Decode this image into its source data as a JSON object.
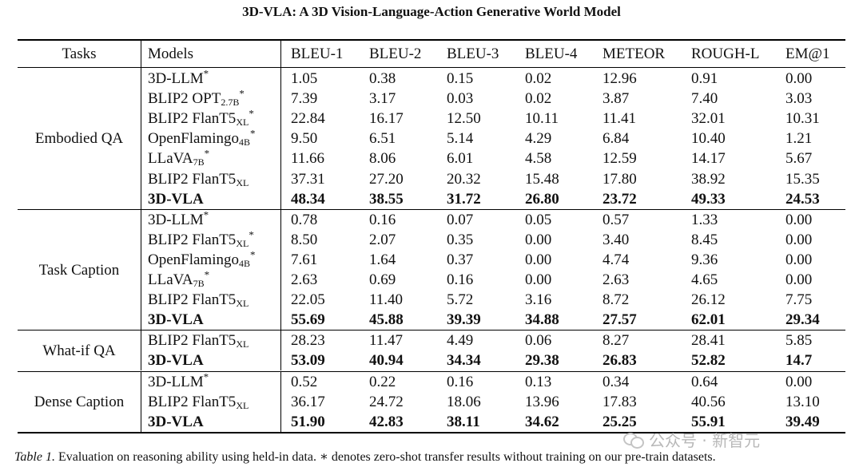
{
  "title": "3D-VLA: A 3D Vision-Language-Action Generative World Model",
  "columns": [
    "Tasks",
    "Models",
    "BLEU-1",
    "BLEU-2",
    "BLEU-3",
    "BLEU-4",
    "METEOR",
    "ROUGH-L",
    "EM@1"
  ],
  "groups": [
    {
      "task": "Embodied QA",
      "rows": [
        {
          "model": "3D-LLM",
          "sub": "",
          "star": true,
          "bold": false,
          "values": [
            "1.05",
            "0.38",
            "0.15",
            "0.02",
            "12.96",
            "0.91",
            "0.00"
          ]
        },
        {
          "model": "BLIP2 OPT",
          "sub": "2.7B",
          "star": true,
          "bold": false,
          "values": [
            "7.39",
            "3.17",
            "0.03",
            "0.02",
            "3.87",
            "7.40",
            "3.03"
          ]
        },
        {
          "model": "BLIP2 FlanT5",
          "sub": "XL",
          "star": true,
          "bold": false,
          "values": [
            "22.84",
            "16.17",
            "12.50",
            "10.11",
            "11.41",
            "32.01",
            "10.31"
          ]
        },
        {
          "model": "OpenFlamingo",
          "sub": "4B",
          "star": true,
          "bold": false,
          "values": [
            "9.50",
            "6.51",
            "5.14",
            "4.29",
            "6.84",
            "10.40",
            "1.21"
          ]
        },
        {
          "model": "LLaVA",
          "sub": "7B",
          "star": true,
          "bold": false,
          "values": [
            "11.66",
            "8.06",
            "6.01",
            "4.58",
            "12.59",
            "14.17",
            "5.67"
          ]
        },
        {
          "model": "BLIP2 FlanT5",
          "sub": "XL",
          "star": false,
          "bold": false,
          "values": [
            "37.31",
            "27.20",
            "20.32",
            "15.48",
            "17.80",
            "38.92",
            "15.35"
          ]
        },
        {
          "model": "3D-VLA",
          "sub": "",
          "star": false,
          "bold": true,
          "values": [
            "48.34",
            "38.55",
            "31.72",
            "26.80",
            "23.72",
            "49.33",
            "24.53"
          ]
        }
      ]
    },
    {
      "task": "Task Caption",
      "rows": [
        {
          "model": "3D-LLM",
          "sub": "",
          "star": true,
          "bold": false,
          "values": [
            "0.78",
            "0.16",
            "0.07",
            "0.05",
            "0.57",
            "1.33",
            "0.00"
          ]
        },
        {
          "model": "BLIP2 FlanT5",
          "sub": "XL",
          "star": true,
          "bold": false,
          "values": [
            "8.50",
            "2.07",
            "0.35",
            "0.00",
            "3.40",
            "8.45",
            "0.00"
          ]
        },
        {
          "model": "OpenFlamingo",
          "sub": "4B",
          "star": true,
          "bold": false,
          "values": [
            "7.61",
            "1.64",
            "0.37",
            "0.00",
            "4.74",
            "9.36",
            "0.00"
          ]
        },
        {
          "model": "LLaVA",
          "sub": "7B",
          "star": true,
          "bold": false,
          "values": [
            "2.63",
            "0.69",
            "0.16",
            "0.00",
            "2.63",
            "4.65",
            "0.00"
          ]
        },
        {
          "model": "BLIP2 FlanT5",
          "sub": "XL",
          "star": false,
          "bold": false,
          "values": [
            "22.05",
            "11.40",
            "5.72",
            "3.16",
            "8.72",
            "26.12",
            "7.75"
          ]
        },
        {
          "model": "3D-VLA",
          "sub": "",
          "star": false,
          "bold": true,
          "values": [
            "55.69",
            "45.88",
            "39.39",
            "34.88",
            "27.57",
            "62.01",
            "29.34"
          ]
        }
      ]
    },
    {
      "task": "What-if QA",
      "rows": [
        {
          "model": "BLIP2 FlanT5",
          "sub": "XL",
          "star": false,
          "bold": false,
          "values": [
            "28.23",
            "11.47",
            "4.49",
            "0.06",
            "8.27",
            "28.41",
            "5.85"
          ]
        },
        {
          "model": "3D-VLA",
          "sub": "",
          "star": false,
          "bold": true,
          "values": [
            "53.09",
            "40.94",
            "34.34",
            "29.38",
            "26.83",
            "52.82",
            "14.7"
          ]
        }
      ]
    },
    {
      "task": "Dense Caption",
      "rows": [
        {
          "model": "3D-LLM",
          "sub": "",
          "star": true,
          "bold": false,
          "values": [
            "0.52",
            "0.22",
            "0.16",
            "0.13",
            "0.34",
            "0.64",
            "0.00"
          ]
        },
        {
          "model": "BLIP2 FlanT5",
          "sub": "XL",
          "star": false,
          "bold": false,
          "values": [
            "36.17",
            "24.72",
            "18.06",
            "13.96",
            "17.83",
            "40.56",
            "13.10"
          ]
        },
        {
          "model": "3D-VLA",
          "sub": "",
          "star": false,
          "bold": true,
          "values": [
            "51.90",
            "42.83",
            "38.11",
            "34.62",
            "25.25",
            "55.91",
            "39.49"
          ]
        }
      ]
    }
  ],
  "caption": {
    "label": "Table 1.",
    "text": " Evaluation on reasoning ability using held-in data. ∗ denotes zero-shot transfer results without training on our pre-train datasets."
  },
  "watermark": "公众号 · 新智元"
}
